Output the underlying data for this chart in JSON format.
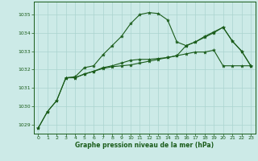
{
  "line1": {
    "x": [
      0,
      1,
      2,
      3,
      4,
      5,
      6,
      7,
      8,
      9,
      10,
      11,
      12,
      13,
      14,
      15,
      16,
      17,
      18,
      19,
      20,
      21,
      22,
      23
    ],
    "y": [
      1028.8,
      1029.7,
      1030.3,
      1031.55,
      1031.55,
      1031.75,
      1031.9,
      1032.05,
      1032.15,
      1032.2,
      1032.25,
      1032.35,
      1032.45,
      1032.55,
      1032.65,
      1032.75,
      1032.85,
      1032.95,
      1032.95,
      1033.05,
      1032.2,
      1032.2,
      1032.2,
      1032.2
    ]
  },
  "line2": {
    "x": [
      0,
      1,
      2,
      3,
      4,
      5,
      6,
      7,
      8,
      9,
      10,
      11,
      12,
      13,
      14,
      15,
      16,
      17,
      18,
      19,
      20,
      21,
      22,
      23
    ],
    "y": [
      1028.8,
      1029.7,
      1030.3,
      1031.55,
      1031.6,
      1032.1,
      1032.2,
      1032.8,
      1033.3,
      1033.8,
      1034.5,
      1035.0,
      1035.1,
      1035.05,
      1034.7,
      1033.5,
      1033.3,
      1033.5,
      1033.8,
      1034.05,
      1034.3,
      1033.55,
      1033.0,
      1032.2
    ]
  },
  "line3": {
    "x": [
      3,
      4,
      5,
      6,
      7,
      8,
      9,
      10,
      11,
      12,
      13,
      14,
      15,
      16,
      17,
      18,
      19,
      20,
      21,
      22,
      23
    ],
    "y": [
      1031.55,
      1031.55,
      1031.75,
      1031.9,
      1032.1,
      1032.2,
      1032.35,
      1032.5,
      1032.55,
      1032.55,
      1032.6,
      1032.65,
      1032.75,
      1033.3,
      1033.5,
      1033.75,
      1034.0,
      1034.3,
      1033.55,
      1033.0,
      1032.2
    ]
  },
  "line_color": "#1a5c1a",
  "bg_color": "#cceae7",
  "grid_color": "#aad4d0",
  "xlabel": "Graphe pression niveau de la mer (hPa)",
  "ylim": [
    1028.5,
    1035.7
  ],
  "xlim": [
    -0.5,
    23.5
  ],
  "yticks": [
    1029,
    1030,
    1031,
    1032,
    1033,
    1034,
    1035
  ],
  "xticks": [
    0,
    1,
    2,
    3,
    4,
    5,
    6,
    7,
    8,
    9,
    10,
    11,
    12,
    13,
    14,
    15,
    16,
    17,
    18,
    19,
    20,
    21,
    22,
    23
  ]
}
